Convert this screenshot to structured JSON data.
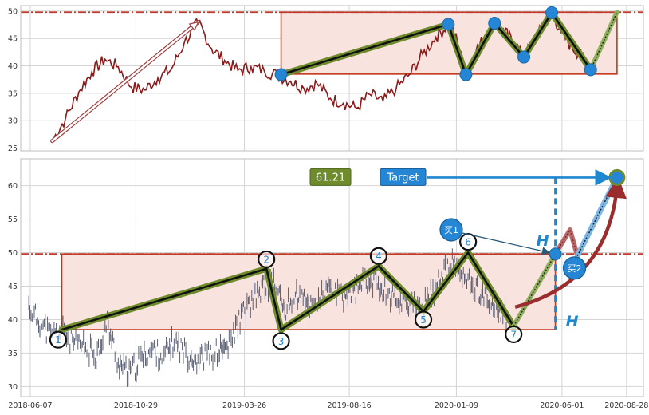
{
  "chart_data": [
    {
      "type": "line",
      "panel": "top",
      "ylim": [
        24.5,
        51
      ],
      "yticks": [
        25,
        30,
        35,
        40,
        45,
        50
      ],
      "xlim": [
        "2018-05-25",
        "2020-09-20"
      ],
      "xticks": [],
      "grid": true,
      "resistance_level": 49.8,
      "box": {
        "x0": "2019-05-15",
        "x1": "2020-08-15",
        "y0": 38.5,
        "y1": 49.8
      },
      "zigzag": {
        "x": [
          "2019-05-15",
          "2019-12-29",
          "2020-01-22",
          "2020-03-01",
          "2020-04-10",
          "2020-05-18",
          "2020-07-10",
          "2020-08-15"
        ],
        "y": [
          38.4,
          47.6,
          38.4,
          47.8,
          41.6,
          49.7,
          39.3,
          49.8
        ]
      },
      "trend_arrow": {
        "x": [
          "2018-07-07",
          "2019-01-22"
        ],
        "y": [
          26.3,
          48.0
        ]
      },
      "series": [
        {
          "color": "#8b1a1a",
          "x": [
            "2018-07-07",
            "2018-07-25",
            "2018-08-12",
            "2018-08-30",
            "2018-09-17",
            "2018-10-05",
            "2018-10-23",
            "2018-11-10",
            "2018-11-28",
            "2018-12-16",
            "2019-01-03",
            "2019-01-22",
            "2019-02-09",
            "2019-02-27",
            "2019-03-17",
            "2019-04-04",
            "2019-04-22",
            "2019-05-10",
            "2019-05-28",
            "2019-06-15",
            "2019-07-03",
            "2019-07-21",
            "2019-08-08",
            "2019-08-26",
            "2019-09-13",
            "2019-10-01",
            "2019-10-19",
            "2019-11-06",
            "2019-11-24",
            "2019-12-12",
            "2019-12-29",
            "2020-01-10",
            "2020-01-22",
            "2020-02-05",
            "2020-02-19",
            "2020-03-01",
            "2020-03-15",
            "2020-03-28",
            "2020-04-10",
            "2020-04-25",
            "2020-05-08",
            "2020-05-18",
            "2020-05-31",
            "2020-06-15",
            "2020-06-28",
            "2020-07-10"
          ],
          "y": [
            26.3,
            30.4,
            35.2,
            38.9,
            41.2,
            39.8,
            36.1,
            35.6,
            37.8,
            39.3,
            44.2,
            48.0,
            43.2,
            41.0,
            39.2,
            39.8,
            39.1,
            38.3,
            37.2,
            35.9,
            36.8,
            34.1,
            33.2,
            32.3,
            34.8,
            33.6,
            35.9,
            38.4,
            42.1,
            45.2,
            47.6,
            44.8,
            38.4,
            42.9,
            45.8,
            47.8,
            46.2,
            44.1,
            41.6,
            44.9,
            47.5,
            49.7,
            46.1,
            43.2,
            41.8,
            39.3
          ]
        }
      ]
    },
    {
      "type": "line",
      "panel": "bottom",
      "ylim": [
        28.5,
        64
      ],
      "yticks": [
        30,
        35,
        40,
        45,
        50,
        55,
        60
      ],
      "xlim": [
        "2018-05-25",
        "2020-09-20"
      ],
      "xticks": [
        "2018-06-07",
        "2018-10-29",
        "2019-03-26",
        "2019-08-16",
        "2020-01-09",
        "2020-06-01",
        "2020-08-28"
      ],
      "grid": true,
      "resistance_level": 49.8,
      "box": {
        "x0": "2018-07-20",
        "x1": "2020-05-23",
        "y0": 38.5,
        "y1": 49.8
      },
      "zigzag": {
        "x": [
          "2018-07-20",
          "2019-04-25",
          "2019-05-15",
          "2019-09-25",
          "2019-11-25",
          "2020-01-25",
          "2020-03-27"
        ],
        "y": [
          38.5,
          47.6,
          38.5,
          48.0,
          41.2,
          50.0,
          39.0
        ]
      },
      "pivots": [
        {
          "label": "1",
          "x": "2018-07-15",
          "y": 37.0
        },
        {
          "label": "2",
          "x": "2019-04-25",
          "y": 49.0
        },
        {
          "label": "3",
          "x": "2019-05-15",
          "y": 36.8
        },
        {
          "label": "4",
          "x": "2019-09-25",
          "y": 49.5
        },
        {
          "label": "5",
          "x": "2019-11-25",
          "y": 40.0
        },
        {
          "label": "6",
          "x": "2020-01-25",
          "y": 51.6
        },
        {
          "label": "7",
          "x": "2020-03-27",
          "y": 37.8
        }
      ],
      "breakout": {
        "x": "2020-05-23",
        "y": 49.8
      },
      "target": {
        "x": "2020-08-15",
        "y": 61.21
      },
      "value_label": "61.21",
      "target_label": "Target",
      "measure_label": "H",
      "buy_labels": [
        {
          "label": "买1",
          "x": "2020-01-02",
          "y": 53.4
        },
        {
          "label": "买2",
          "x": "2020-06-18",
          "y": 47.7
        }
      ],
      "pullback": {
        "x": [
          "2020-05-23",
          "2020-06-12",
          "2020-06-22"
        ],
        "y": [
          49.8,
          53.4,
          49.5
        ]
      },
      "series": [
        {
          "color": "#4a5068",
          "x": [
            "2018-06-05",
            "2018-06-20",
            "2018-07-05",
            "2018-07-20",
            "2018-08-05",
            "2018-08-20",
            "2018-09-05",
            "2018-09-20",
            "2018-10-05",
            "2018-10-20",
            "2018-11-05",
            "2018-11-20",
            "2018-12-05",
            "2018-12-20",
            "2019-01-05",
            "2019-01-20",
            "2019-02-05",
            "2019-02-20",
            "2019-03-05",
            "2019-03-20",
            "2019-04-05",
            "2019-04-20",
            "2019-05-05",
            "2019-05-20",
            "2019-06-05",
            "2019-06-20",
            "2019-07-05",
            "2019-07-20",
            "2019-08-05",
            "2019-08-20",
            "2019-09-05",
            "2019-09-20",
            "2019-10-05",
            "2019-10-20",
            "2019-11-05",
            "2019-11-20",
            "2019-12-05",
            "2019-12-20",
            "2020-01-05",
            "2020-01-20",
            "2020-02-05",
            "2020-02-20",
            "2020-03-05",
            "2020-03-20"
          ],
          "y": [
            42.0,
            39.5,
            37.6,
            38.2,
            36.5,
            35.9,
            34.8,
            39.4,
            33.6,
            31.8,
            34.2,
            35.6,
            34.4,
            36.8,
            35.1,
            34.0,
            34.7,
            35.3,
            36.1,
            40.2,
            42.6,
            44.8,
            45.6,
            41.4,
            43.8,
            42.1,
            42.9,
            44.7,
            43.2,
            44.0,
            45.4,
            45.9,
            44.2,
            43.1,
            42.6,
            40.9,
            43.8,
            46.5,
            48.4,
            46.0,
            44.6,
            43.2,
            41.6,
            40.5
          ]
        }
      ]
    }
  ]
}
